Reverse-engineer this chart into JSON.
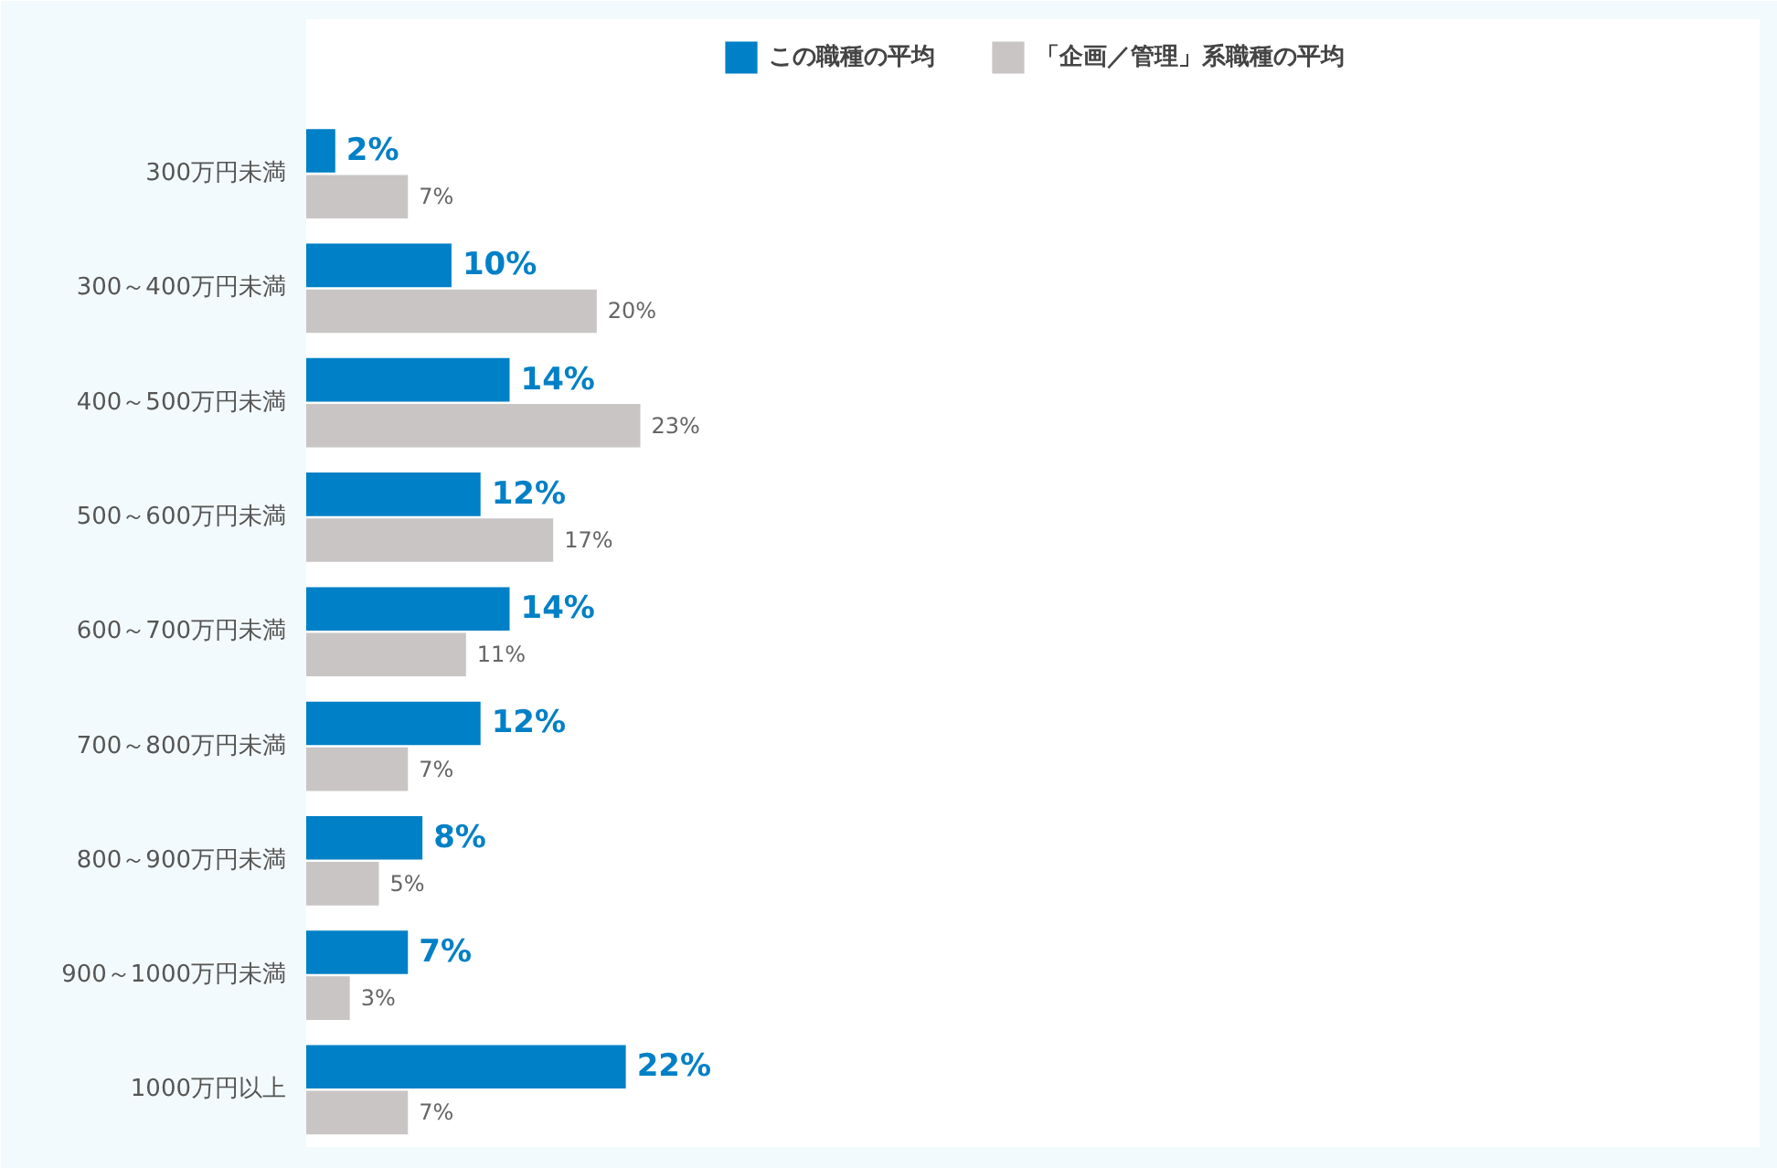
{
  "chart_data": {
    "type": "bar",
    "orientation": "horizontal",
    "legend": "top",
    "grid": false,
    "tick_labels": "y",
    "categories": [
      "300万円未満",
      "300～400万円未満",
      "400～500万円未満",
      "500～600万円未満",
      "600～700万円未満",
      "700～800万円未満",
      "800～900万円未満",
      "900～1000万円未満",
      "1000万円以上"
    ],
    "series": [
      {
        "name": "この職種の平均",
        "color": "#0080c6",
        "values": [
          2,
          10,
          14,
          12,
          14,
          12,
          8,
          7,
          22
        ],
        "value_labels": [
          "2%",
          "10%",
          "14%",
          "12%",
          "14%",
          "12%",
          "8%",
          "7%",
          "22%"
        ]
      },
      {
        "name": "「企画／管理」系職種の平均",
        "color": "#c9c5c5",
        "values": [
          7,
          20,
          23,
          17,
          11,
          7,
          5,
          3,
          7
        ],
        "value_labels": [
          "7%",
          "20%",
          "23%",
          "17%",
          "11%",
          "7%",
          "5%",
          "3%",
          "7%"
        ]
      }
    ]
  }
}
